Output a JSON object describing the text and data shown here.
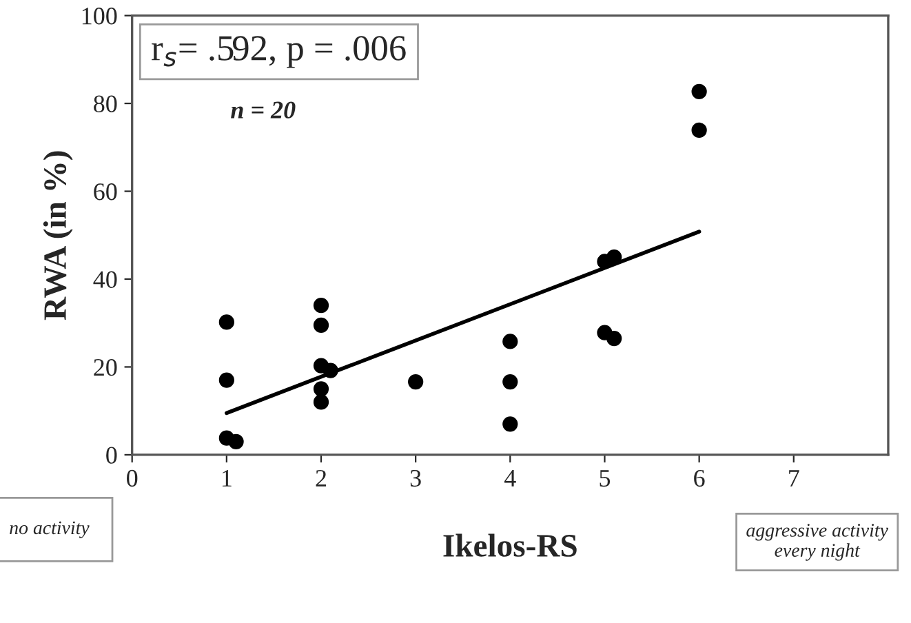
{
  "chart_data": {
    "type": "scatter",
    "xlabel": "Ikelos-RS",
    "ylabel": "RWA (in %)",
    "xlim": [
      0,
      8
    ],
    "xticks": [
      0,
      1,
      2,
      3,
      4,
      5,
      6,
      7
    ],
    "ylim": [
      0,
      100
    ],
    "yticks": [
      0,
      20,
      40,
      60,
      80,
      100
    ],
    "grid": false,
    "annotations": [
      "r$_{s}$= .592, p = .006",
      "n = 20",
      "no activity",
      "aggressive activity\nevery night"
    ],
    "series": [
      {
        "marker": "circle",
        "color": "#000000",
        "x": [
          1,
          1,
          1,
          1.1,
          2,
          2,
          2,
          2.1,
          2,
          2,
          3,
          4,
          4,
          4,
          5,
          5.1,
          5,
          5.1,
          6,
          6
        ],
        "values": [
          30.2,
          17,
          3.8,
          3,
          34,
          29.5,
          20.3,
          19.2,
          15,
          12,
          16.6,
          25.8,
          16.6,
          7,
          44,
          45,
          27.8,
          26.5,
          82.7,
          73.9
        ]
      },
      {
        "type": "line",
        "marker": "none",
        "color": "#000000",
        "x": [
          1,
          6
        ],
        "values": [
          9.5,
          50.8
        ]
      }
    ]
  }
}
